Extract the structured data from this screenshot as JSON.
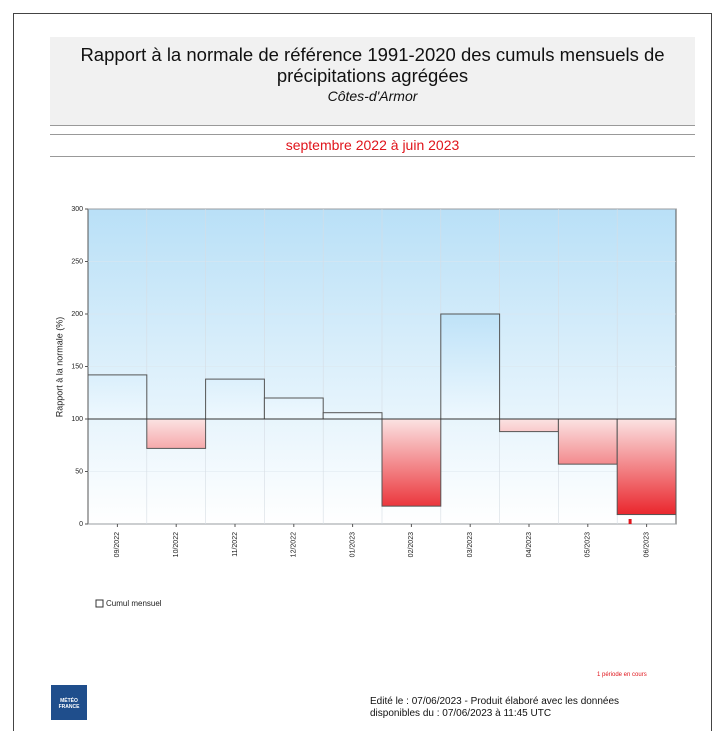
{
  "title": "Rapport à la normale de référence 1991-2020 des cumuls mensuels de précipitations agrégées",
  "subtitle": "Côtes-d'Armor",
  "period": "septembre 2022 à juin 2023",
  "chart_data": {
    "type": "bar",
    "y_label": "Rapport à la normale (%)",
    "categories": [
      "09/2022",
      "10/2022",
      "11/2022",
      "12/2022",
      "01/2023",
      "02/2023",
      "03/2023",
      "04/2023",
      "05/2023",
      "06/2023"
    ],
    "series": [
      {
        "name": "Cumul mensuel",
        "values": [
          142,
          72,
          138,
          120,
          106,
          17,
          200,
          88,
          57,
          9
        ]
      }
    ],
    "baseline": 100,
    "above_color": "#8fcdf2",
    "below_color": "#e8141b",
    "ylim": [
      0,
      300
    ],
    "yticks": [
      0,
      50,
      100,
      150,
      200,
      250,
      300
    ],
    "grid": true
  },
  "note": "1 période en cours",
  "footer": "Edité le : 07/06/2023 - Produit élaboré avec les données disponibles du : 07/06/2023 à 11:45 UTC",
  "logo": {
    "line1": "MÉTÉO",
    "line2": "FRANCE"
  }
}
